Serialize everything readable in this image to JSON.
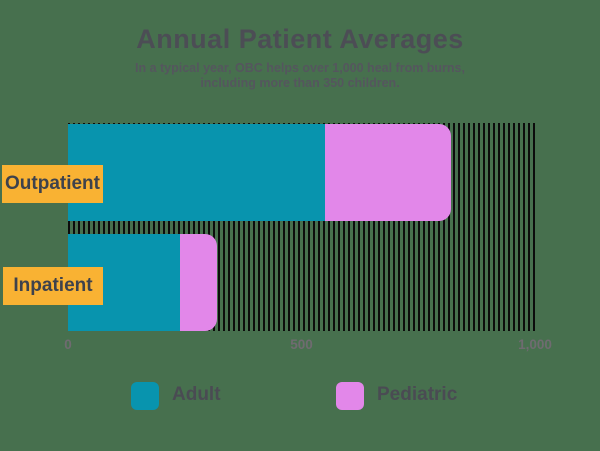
{
  "header": {
    "title": "Annual Patient Averages",
    "subtitle_line1": "In a typical year, OBC helps over 1,000 heal from burns,",
    "subtitle_line2": "including more than 350 children."
  },
  "colors": {
    "background": "#47704E",
    "adult": "#0894AE",
    "pediatric": "#E287E9",
    "category_tag": "#F9B233",
    "stripe": "#0C0C0C",
    "title_text": "#4C4D55",
    "axis_text": "#6F6B70"
  },
  "chart_data": {
    "type": "bar",
    "orientation": "horizontal",
    "stacked": true,
    "title": "Annual Patient Averages",
    "subtitle": "In a typical year, OBC helps over 1,000 heal from burns, including more than 350 children.",
    "categories": [
      "Outpatient",
      "Inpatient"
    ],
    "series": [
      {
        "name": "Adult",
        "color": "#0894AE",
        "values": [
          550,
          240
        ]
      },
      {
        "name": "Pediatric",
        "color": "#E287E9",
        "values": [
          270,
          80
        ]
      }
    ],
    "totals": {
      "Outpatient": 820,
      "Inpatient": 320
    },
    "xlim": [
      0,
      1000
    ],
    "ticks": [
      {
        "value": 0,
        "label": "0"
      },
      {
        "value": 500,
        "label": "500"
      },
      {
        "value": 1000,
        "label": "1,000"
      }
    ],
    "grid": false,
    "legend_position": "bottom",
    "plot_background_pattern": "vertical-black-stripes"
  }
}
